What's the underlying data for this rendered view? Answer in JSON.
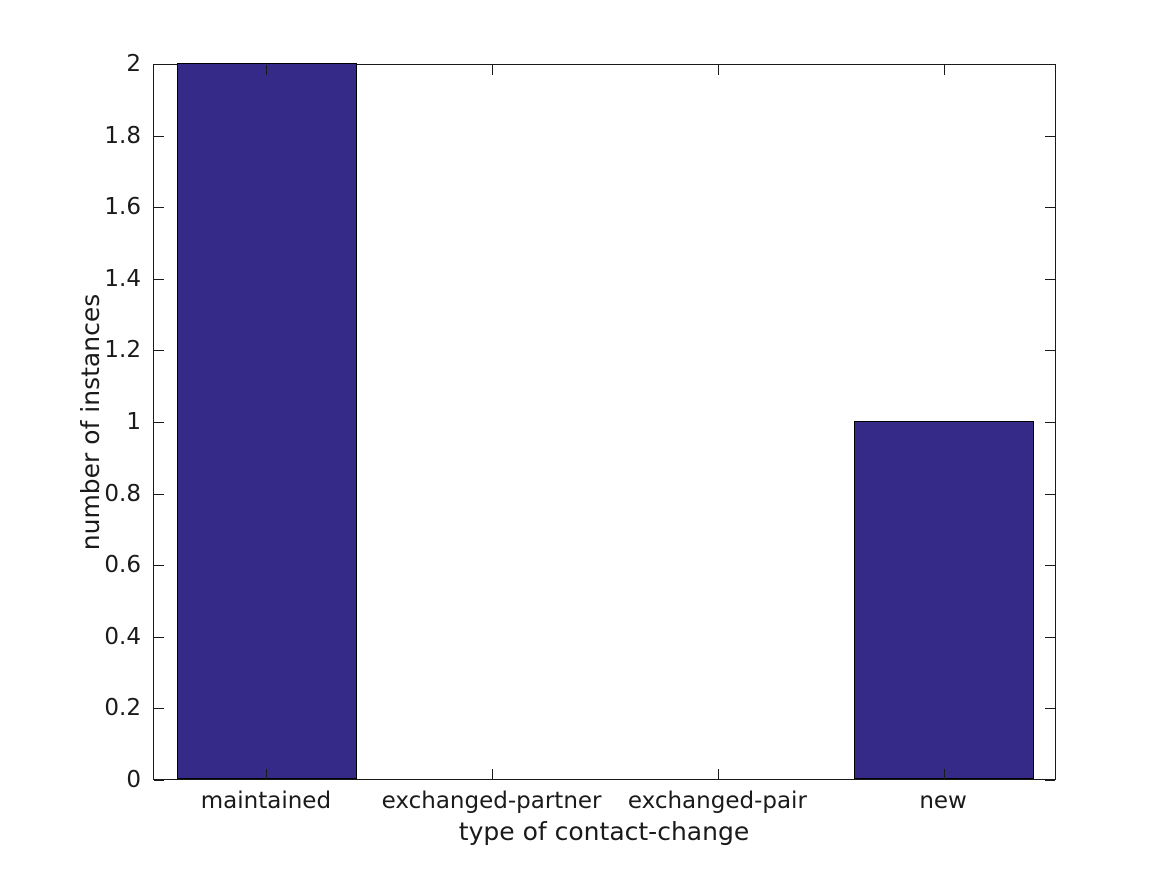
{
  "chart_data": {
    "type": "bar",
    "categories": [
      "maintained",
      "exchanged-partner",
      "exchanged-pair",
      "new"
    ],
    "values": [
      2,
      0,
      0,
      1
    ],
    "title": "",
    "xlabel": "type of contact-change",
    "ylabel": "number of instances",
    "ylim": [
      0,
      2
    ],
    "yticks": [
      0,
      0.2,
      0.4,
      0.6,
      0.8,
      1,
      1.2,
      1.4,
      1.6,
      1.8,
      2
    ],
    "ytick_labels": [
      "0",
      "0.2",
      "0.4",
      "0.6",
      "0.8",
      "1",
      "1.2",
      "1.4",
      "1.6",
      "1.8",
      "2"
    ],
    "bar_width_fraction": 0.8,
    "bar_color": "#352a87",
    "bar_edge_color": "#000000",
    "axis_color": "#1a1a1a",
    "text_color": "#1a1a1a",
    "background_color": "#ffffff",
    "grid": false,
    "legend": null,
    "tick_direction": "in",
    "box": true
  }
}
